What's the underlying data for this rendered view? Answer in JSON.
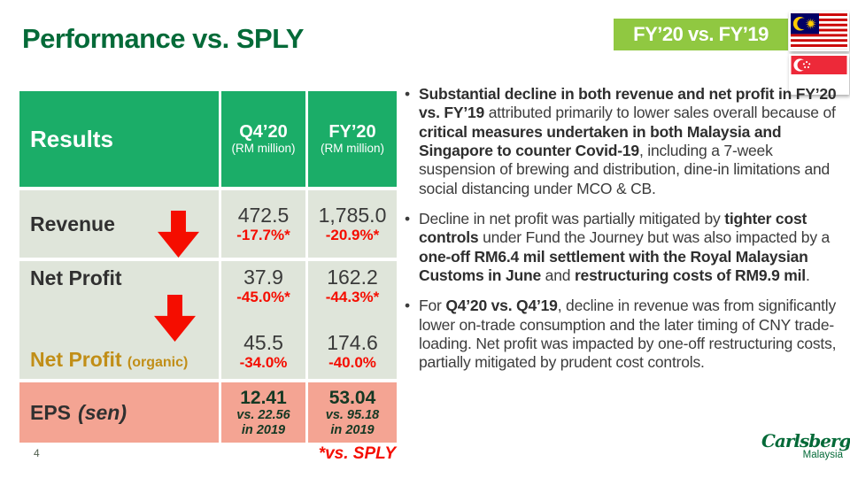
{
  "slide": {
    "title": "Performance vs. SPLY",
    "badge_label": "FY’20 vs. FY’19",
    "footnote": "*vs. SPLY",
    "page_number": "4",
    "logo": {
      "name": "Carlsberg",
      "region": "Malaysia"
    }
  },
  "colors": {
    "brand_green": "#046A38",
    "table_header_green": "#1BAD68",
    "badge_green": "#90C841",
    "row_background": "#DFE5DA",
    "eps_row_background": "#F4A493",
    "decline_red": "#F50D00",
    "organic_gold": "#C18E17",
    "eps_text_green": "#143823",
    "body_text": "#3C3C3C"
  },
  "table": {
    "header": {
      "results_label": "Results",
      "columns": [
        {
          "title": "Q4’20",
          "subtitle": "(RM million)"
        },
        {
          "title": "FY’20",
          "subtitle": "(RM million)"
        }
      ]
    },
    "revenue": {
      "label": "Revenue",
      "q4_value": "472.5",
      "q4_change": "-17.7%*",
      "fy_value": "1,785.0",
      "fy_change": "-20.9%*"
    },
    "net_profit": {
      "label": "Net Profit",
      "q4_value": "37.9",
      "q4_change": "-45.0%*",
      "fy_value": "162.2",
      "fy_change": "-44.3%*"
    },
    "net_profit_organic": {
      "label": "Net Profit",
      "label_suffix": "(organic)",
      "q4_value": "45.5",
      "q4_change": "-34.0%",
      "fy_value": "174.6",
      "fy_change": "-40.0%"
    },
    "eps": {
      "label": "EPS",
      "label_suffix": "(sen)",
      "q4_value": "12.41",
      "q4_note": "vs. 22.56\nin 2019",
      "fy_value": "53.04",
      "fy_note": "vs. 95.18\nin 2019"
    }
  },
  "panel": {
    "bullets": [
      {
        "segments": [
          {
            "text": "Substantial decline in both revenue and net profit in FY’20 vs. FY’19",
            "bold": true
          },
          {
            "text": " attributed primarily to lower sales overall because of ",
            "bold": false
          },
          {
            "text": "critical measures undertaken in both Malaysia and Singapore to counter Covid-19",
            "bold": true
          },
          {
            "text": ", including a 7-week suspension of brewing and distribution, dine-in limitations and social distancing under MCO & CB.",
            "bold": false
          }
        ]
      },
      {
        "segments": [
          {
            "text": "Decline in net profit was partially mitigated by ",
            "bold": false
          },
          {
            "text": "tighter cost controls",
            "bold": true
          },
          {
            "text": " under Fund the Journey but was also impacted by a ",
            "bold": false
          },
          {
            "text": "one-off RM6.4 mil settlement with the Royal Malaysian Customs in June",
            "bold": true
          },
          {
            "text": " and ",
            "bold": false
          },
          {
            "text": "restructuring costs of RM9.9 mil",
            "bold": true
          },
          {
            "text": ".",
            "bold": false
          }
        ]
      },
      {
        "segments": [
          {
            "text": "For ",
            "bold": false
          },
          {
            "text": "Q4’20 vs. Q4’19",
            "bold": true
          },
          {
            "text": ", decline in revenue was from significantly lower on-trade consumption and the later timing of CNY trade-loading. Net profit was impacted by one-off restructuring costs, partially mitigated by prudent cost controls.",
            "bold": false
          }
        ]
      }
    ]
  }
}
